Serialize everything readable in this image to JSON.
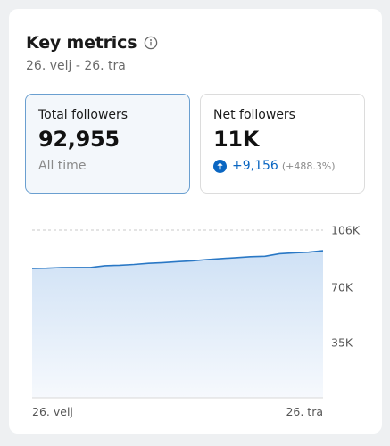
{
  "header": {
    "title": "Key metrics",
    "date_range": "26. velj - 26. tra"
  },
  "metrics": {
    "total": {
      "label": "Total followers",
      "value": "92,955",
      "sub": "All time"
    },
    "net": {
      "label": "Net followers",
      "value": "11K",
      "growth": "+9,156",
      "growth_pct": "(+488.3%)"
    }
  },
  "colors": {
    "accent": "#0a66c2",
    "line": "#2a78c5",
    "area": "#d6e6f7"
  },
  "icons": {
    "info": "info-icon",
    "growth": "arrow-up-circle-icon"
  },
  "chart_data": {
    "type": "area",
    "x_labels": [
      "26. velj",
      "26. tra"
    ],
    "y_ticks": [
      {
        "value": 106000,
        "label": "106K"
      },
      {
        "value": 70000,
        "label": "70K"
      },
      {
        "value": 35000,
        "label": "35K"
      }
    ],
    "ylim": [
      0,
      106000
    ],
    "grid": true,
    "values": [
      81800,
      81900,
      82300,
      82400,
      82400,
      83500,
      83800,
      84300,
      85000,
      85500,
      86100,
      86600,
      87400,
      88000,
      88600,
      89200,
      89500,
      91100,
      91700,
      92100,
      92955
    ]
  }
}
